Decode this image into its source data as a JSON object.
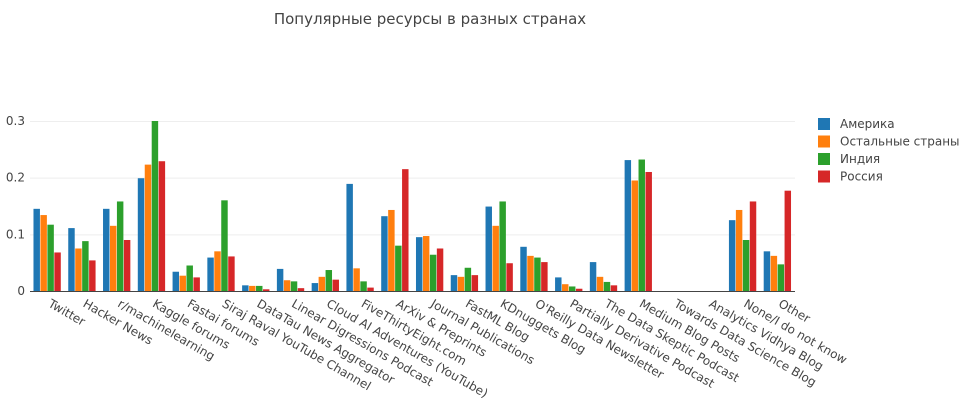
{
  "chart_data": {
    "type": "bar",
    "title": "Популярные ресурсы в разных странах",
    "xlabel": "",
    "ylabel": "",
    "ylim": [
      0,
      0.315
    ],
    "yticks": [
      0,
      0.1,
      0.2,
      0.3
    ],
    "ytick_labels": [
      "0",
      "0.1",
      "0.2",
      "0.3"
    ],
    "grid": true,
    "legend_position": "right",
    "categories": [
      "Twitter",
      "Hacker News",
      "r/machinelearning",
      "Kaggle forums",
      "Fastai forums",
      "Siraj Raval YouTube Channel",
      "DataTau News Aggregator",
      "Linear Digressions Podcast",
      "Cloud AI Adventures (YouTube)",
      "FiveThirtyEight.com",
      "ArXiv & Preprints",
      "Journal Publications",
      "FastML Blog",
      "KDnuggets Blog",
      "O'Reilly Data Newsletter",
      "Partially Derivative Podcast",
      "The Data Skeptic Podcast",
      "Medium Blog Posts",
      "Towards Data Science Blog",
      "Analytics Vidhya Blog",
      "None/I do not know",
      "Other"
    ],
    "series": [
      {
        "name": "Америка",
        "color": "#1f77b4",
        "values": [
          0.145,
          0.111,
          0.145,
          0.199,
          0.034,
          0.059,
          0.01,
          0.039,
          0.014,
          0.189,
          0.132,
          0.095,
          0.028,
          0.149,
          0.078,
          0.024,
          0.051,
          0.231,
          0,
          0,
          0.125,
          0.07
        ]
      },
      {
        "name": "Остальные страны",
        "color": "#ff7f0e",
        "values": [
          0.134,
          0.075,
          0.115,
          0.223,
          0.027,
          0.07,
          0.009,
          0.019,
          0.025,
          0.04,
          0.143,
          0.097,
          0.025,
          0.115,
          0.062,
          0.012,
          0.025,
          0.195,
          0,
          0,
          0.143,
          0.062
        ]
      },
      {
        "name": "Индия",
        "color": "#2ca02c",
        "values": [
          0.117,
          0.088,
          0.158,
          0.3,
          0.045,
          0.16,
          0.009,
          0.017,
          0.037,
          0.017,
          0.08,
          0.064,
          0.041,
          0.158,
          0.059,
          0.008,
          0.016,
          0.232,
          0,
          0,
          0.09,
          0.047
        ]
      },
      {
        "name": "Россия",
        "color": "#d62728",
        "values": [
          0.068,
          0.054,
          0.09,
          0.229,
          0.024,
          0.061,
          0.003,
          0.005,
          0.02,
          0.006,
          0.215,
          0.075,
          0.028,
          0.049,
          0.051,
          0.004,
          0.01,
          0.21,
          0,
          0,
          0.158,
          0.177
        ]
      }
    ]
  }
}
